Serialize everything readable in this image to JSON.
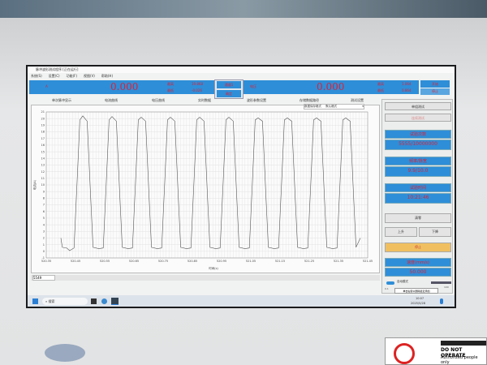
{
  "window": {
    "title": "脉冲波形测试程序 [正在运行]",
    "menu": [
      "系统(S)",
      "设置(C)",
      "功能(F)",
      "视图(V)",
      "帮助(H)"
    ]
  },
  "status_bar": {
    "left_label": "A",
    "left_value": "0.000",
    "left_max_label": "最高",
    "left_max": "19.868",
    "left_min_label": "最低",
    "left_min": "-0.026",
    "popup_top": "通道1",
    "popup_bottom": "确定",
    "right_label": "电压",
    "right_value": "0.000",
    "right_max_label": "最高",
    "right_max": "1.064",
    "right_min_label": "最低",
    "right_min": "0.864",
    "btn_start": "开始",
    "btn_stop": "停止"
  },
  "tabs": [
    "单次脉冲显示",
    "电流曲线",
    "电压曲线",
    "实时数据",
    "波形参数设置",
    "存储数据路径",
    "测试设置"
  ],
  "dropdown": {
    "label": "数据保存格式",
    "value": "默认格式"
  },
  "chart_data": {
    "type": "line",
    "xlabel": "时间(s)",
    "ylabel": "电流(A)",
    "xlim": [
      520.35,
      521.45
    ],
    "ylim": [
      -1,
      21
    ],
    "xticks": [
      "520.35",
      "520.4",
      "520.45",
      "520.5",
      "520.55",
      "520.6",
      "520.65",
      "520.7",
      "520.75",
      "520.8",
      "520.85",
      "520.9",
      "520.95",
      "521",
      "521.05",
      "521.1",
      "521.15",
      "521.2",
      "521.25",
      "521.3",
      "521.35",
      "521.4",
      "521.45"
    ],
    "yticks": [
      "-1",
      "0",
      "1",
      "2",
      "3",
      "4",
      "5",
      "6",
      "7",
      "8",
      "9",
      "10",
      "11",
      "12",
      "13",
      "14",
      "15",
      "16",
      "17",
      "18",
      "19",
      "20",
      "21"
    ],
    "grid": true,
    "series": [
      {
        "points": [
          [
            520.4,
            2
          ],
          [
            520.405,
            0.6
          ],
          [
            520.42,
            0.5
          ],
          [
            520.43,
            0.1
          ],
          [
            520.445,
            0.5
          ],
          [
            520.455,
            10
          ],
          [
            520.465,
            19.8
          ],
          [
            520.475,
            20.4
          ],
          [
            520.49,
            19.6
          ],
          [
            520.5,
            10
          ],
          [
            520.51,
            0.6
          ],
          [
            520.53,
            0.4
          ],
          [
            520.545,
            0.5
          ],
          [
            520.555,
            10
          ],
          [
            520.565,
            19.8
          ],
          [
            520.575,
            20.3
          ],
          [
            520.59,
            19.6
          ],
          [
            520.6,
            10
          ],
          [
            520.61,
            0.6
          ],
          [
            520.63,
            0.4
          ],
          [
            520.645,
            0.5
          ],
          [
            520.655,
            10
          ],
          [
            520.665,
            19.8
          ],
          [
            520.675,
            20.2
          ],
          [
            520.69,
            19.6
          ],
          [
            520.7,
            10
          ],
          [
            520.71,
            0.6
          ],
          [
            520.73,
            0.4
          ],
          [
            520.745,
            0.5
          ],
          [
            520.755,
            10
          ],
          [
            520.765,
            19.8
          ],
          [
            520.775,
            20.2
          ],
          [
            520.79,
            19.6
          ],
          [
            520.8,
            10
          ],
          [
            520.81,
            0.6
          ],
          [
            520.83,
            0.4
          ],
          [
            520.845,
            0.5
          ],
          [
            520.855,
            10
          ],
          [
            520.865,
            19.8
          ],
          [
            520.875,
            20.2
          ],
          [
            520.89,
            19.6
          ],
          [
            520.9,
            10
          ],
          [
            520.91,
            0.6
          ],
          [
            520.93,
            0.4
          ],
          [
            520.945,
            0.5
          ],
          [
            520.955,
            10
          ],
          [
            520.965,
            19.8
          ],
          [
            520.975,
            20.2
          ],
          [
            520.99,
            19.6
          ],
          [
            521,
            10
          ],
          [
            521.01,
            0.6
          ],
          [
            521.03,
            0.4
          ],
          [
            521.045,
            0.5
          ],
          [
            521.055,
            10
          ],
          [
            521.065,
            19.8
          ],
          [
            521.075,
            20.1
          ],
          [
            521.09,
            19.6
          ],
          [
            521.1,
            10
          ],
          [
            521.11,
            0.6
          ],
          [
            521.13,
            0.4
          ],
          [
            521.145,
            0.5
          ],
          [
            521.155,
            10
          ],
          [
            521.165,
            19.8
          ],
          [
            521.175,
            20.1
          ],
          [
            521.19,
            19.6
          ],
          [
            521.2,
            10
          ],
          [
            521.21,
            0.6
          ],
          [
            521.23,
            0.4
          ],
          [
            521.245,
            0.5
          ],
          [
            521.255,
            10
          ],
          [
            521.265,
            19.8
          ],
          [
            521.275,
            20.1
          ],
          [
            521.29,
            19.6
          ],
          [
            521.3,
            10
          ],
          [
            521.31,
            0.6
          ],
          [
            521.33,
            0.4
          ],
          [
            521.345,
            0.5
          ],
          [
            521.355,
            10
          ],
          [
            521.365,
            19.8
          ],
          [
            521.375,
            20.1
          ],
          [
            521.39,
            19.6
          ],
          [
            521.4,
            10
          ],
          [
            521.41,
            0.6
          ],
          [
            521.425,
            2
          ]
        ]
      }
    ],
    "line_color": "#555555"
  },
  "scroll_value": "5549",
  "right_panel": {
    "btn1": "单组测试",
    "btn2": "连续测试",
    "count_label": "试验次数",
    "count_value": "5555/10000000",
    "freq_label": "频率/脉宽",
    "freq_value": "9.9/10.0",
    "time_label": "试验时间",
    "time_value": "10:21:46",
    "reset": "清零",
    "up": "上升",
    "down": "下降",
    "stop": "停止",
    "speed_label": "速度(mm/s)",
    "speed_value": "50.000",
    "toggle_label": "自动模式",
    "tooltip": "单击右键以删除最近添加",
    "slider_min": "0.1",
    "slider_max": "100"
  },
  "taskbar": {
    "search": "搜索",
    "time": "10:07",
    "date": "2025/5/28"
  },
  "sticker": {
    "line1": "DO NOT OPERATE",
    "line2": "Authorized people only"
  },
  "colors": {
    "accent": "#2e8ed8",
    "value_red": "#d8233a",
    "stop_yellow": "#f0c060"
  }
}
